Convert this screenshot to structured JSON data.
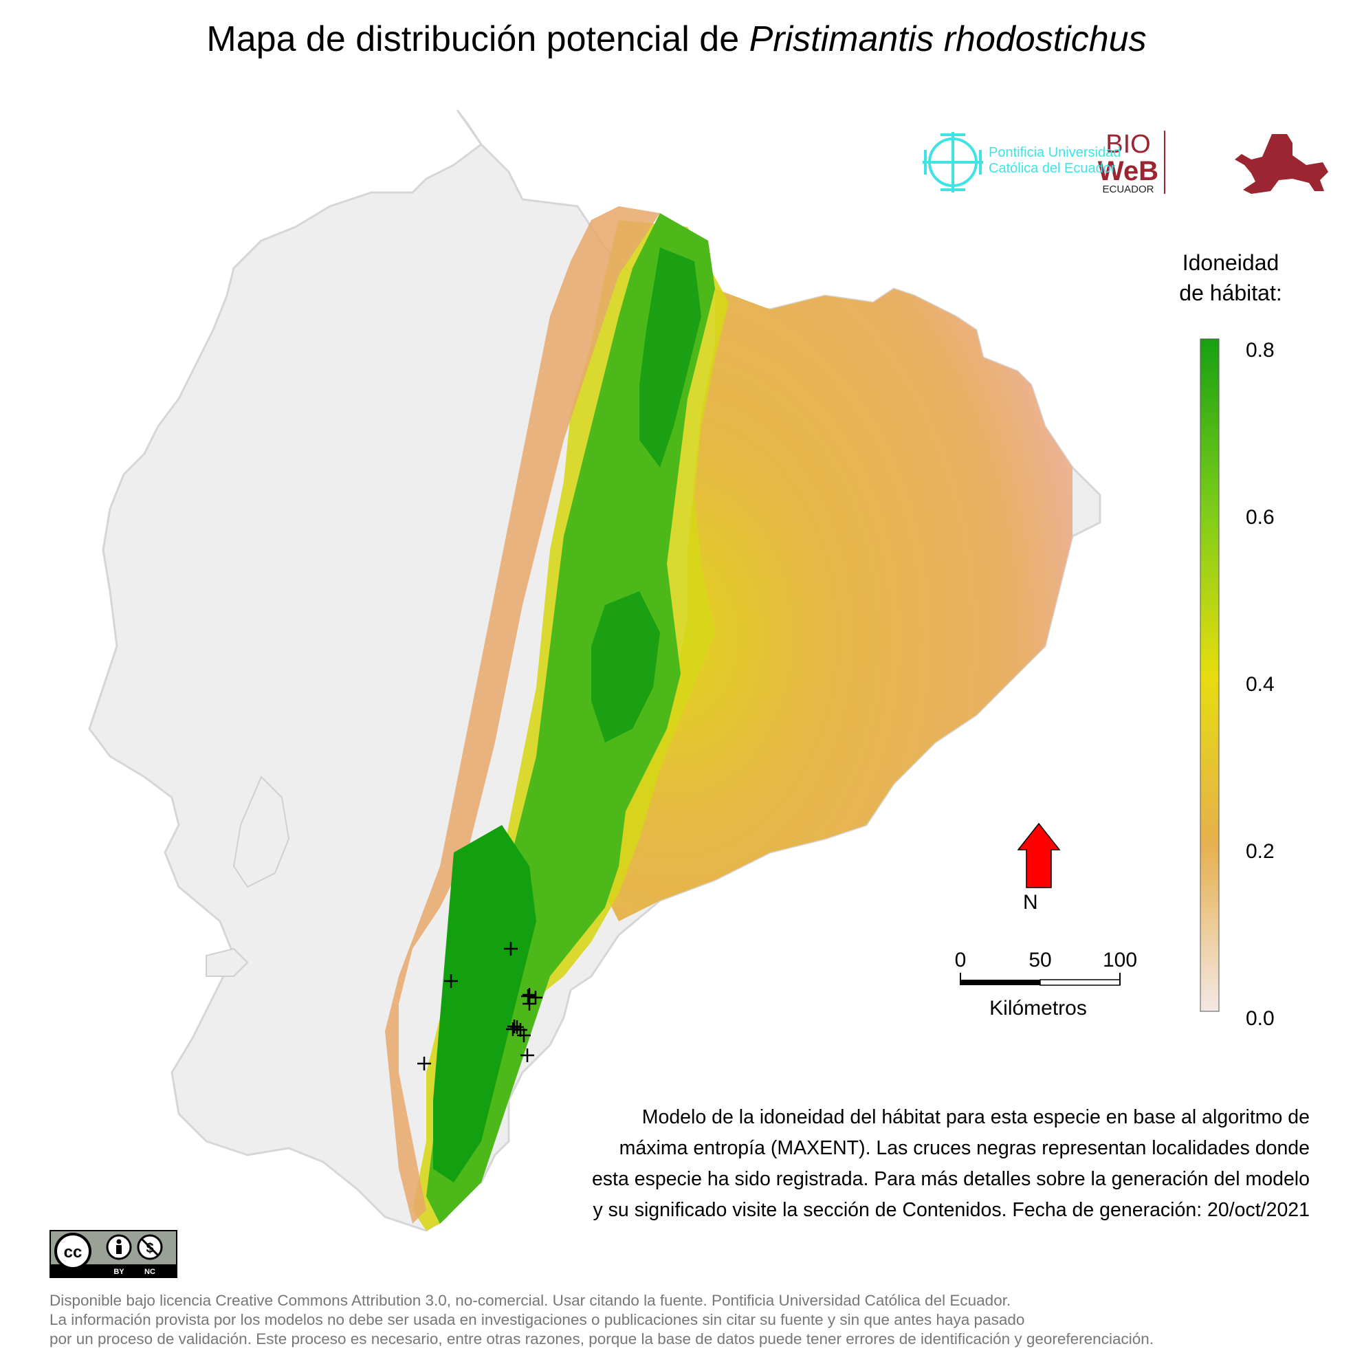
{
  "title": {
    "prefix": "Mapa de distribución potencial de",
    "species": "Pristimantis rhodostichus"
  },
  "legend": {
    "title_line1": "Idoneidad",
    "title_line2": "de hábitat:",
    "ticks": [
      "0.8",
      "0.6",
      "0.4",
      "0.2",
      "0.0"
    ],
    "colors": {
      "high": "#17a012",
      "upper_mid": "#7ccc1a",
      "mid": "#e6dd0e",
      "low": "#e6b04d",
      "lowest": "#f3e8e4"
    }
  },
  "north_arrow": {
    "label": "N",
    "color": "#ff0000"
  },
  "scale_bar": {
    "labels": [
      "0",
      "50",
      "100"
    ],
    "unit": "Kilómetros"
  },
  "logos": {
    "puce_line1": "Pontificia Universidad",
    "puce_line2": "Católica del Ecuador",
    "bioweb_line1": "BIO",
    "bioweb_line2": "WeB",
    "bioweb_line3": "ECUADOR",
    "puce_color": "#3fe4e2",
    "bioweb_color": "#9b2530"
  },
  "description": {
    "line1": "Modelo de la idoneidad del hábitat para esta especie en base al algoritmo de",
    "line2": "máxima entropía (MAXENT). Las cruces negras representan localidades donde",
    "line3": "esta especie ha sido registrada. Para más detalles sobre la generación del modelo",
    "line4": "y su significado visite la sección de Contenidos. Fecha de generación: 20/oct/2021"
  },
  "license": {
    "badge": {
      "cc": "cc",
      "by": "BY",
      "nc": "NC"
    },
    "line1": "Disponible bajo licencia Creative Commons Attribution 3.0, no-comercial. Usar citando la fuente. Pontificia Universidad Católica del Ecuador.",
    "line2": "La información provista por los modelos no debe ser usada en investigaciones o publicaciones sin citar su fuente y sin que antes haya pasado",
    "line3": "por un proceso de validación. Este proceso es necesario, entre otras razones, porque la base de datos puede tener errores de identificación y georeferenciación."
  },
  "map": {
    "record_marker_count": 13
  }
}
